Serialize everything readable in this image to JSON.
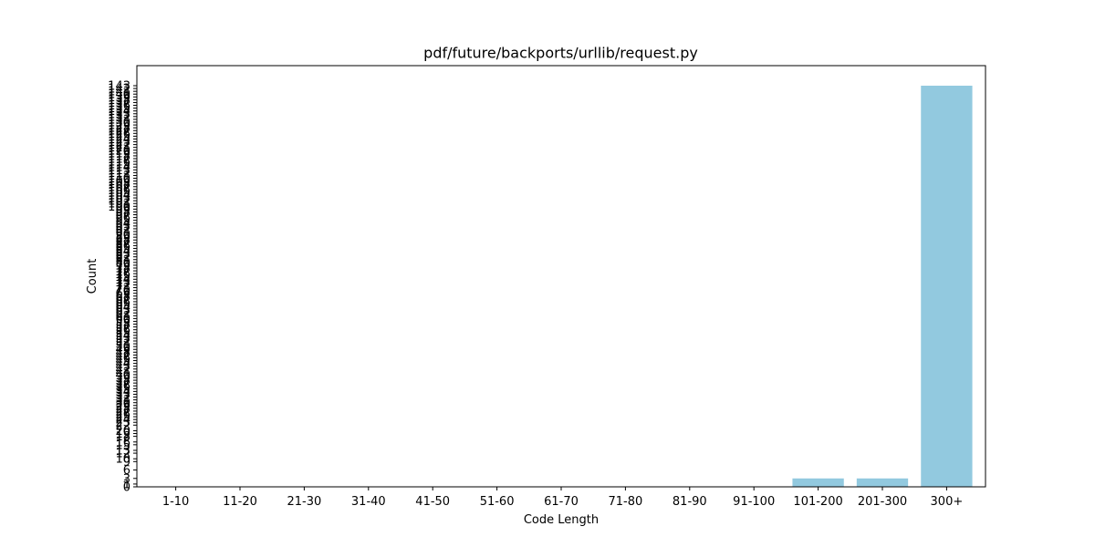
{
  "chart_data": {
    "type": "bar",
    "title": "pdf/future/backports/urllib/request.py",
    "xlabel": "Code Length",
    "ylabel": "Count",
    "categories": [
      "1-10",
      "11-20",
      "21-30",
      "31-40",
      "41-50",
      "51-60",
      "61-70",
      "71-80",
      "81-90",
      "91-100",
      "101-200",
      "201-300",
      "300+"
    ],
    "values": [
      0,
      0,
      0,
      0,
      0,
      0,
      0,
      0,
      0,
      0,
      3,
      3,
      143
    ],
    "ylim": [
      0,
      150.15
    ],
    "yticks": [
      0,
      1,
      3,
      6,
      9,
      10,
      12,
      13,
      15,
      16,
      18,
      19,
      20,
      22,
      23,
      24,
      25,
      26,
      27,
      28,
      29,
      30,
      31,
      32,
      33,
      34,
      35,
      36,
      37,
      38,
      39,
      40,
      41,
      42,
      43,
      44,
      45,
      46,
      47,
      48,
      49,
      50,
      51,
      52,
      53,
      54,
      55,
      56,
      57,
      58,
      59,
      60,
      61,
      62,
      63,
      64,
      65,
      66,
      67,
      68,
      69,
      70,
      71,
      72,
      73,
      74,
      75,
      76,
      77,
      78,
      79,
      80,
      81,
      82,
      83,
      84,
      85,
      86,
      87,
      88,
      89,
      90,
      91,
      92,
      93,
      94,
      95,
      96,
      97,
      98,
      99,
      100,
      101,
      102,
      103,
      104,
      105,
      106,
      107,
      108,
      109,
      110,
      111,
      112,
      113,
      114,
      115,
      116,
      117,
      118,
      119,
      120,
      121,
      122,
      123,
      124,
      125,
      126,
      127,
      128,
      129,
      130,
      131,
      132,
      133,
      134,
      135,
      136,
      137,
      138,
      139,
      140,
      141,
      142,
      143
    ],
    "bar_color": "#92c9df",
    "grid": false,
    "legend": "none"
  }
}
